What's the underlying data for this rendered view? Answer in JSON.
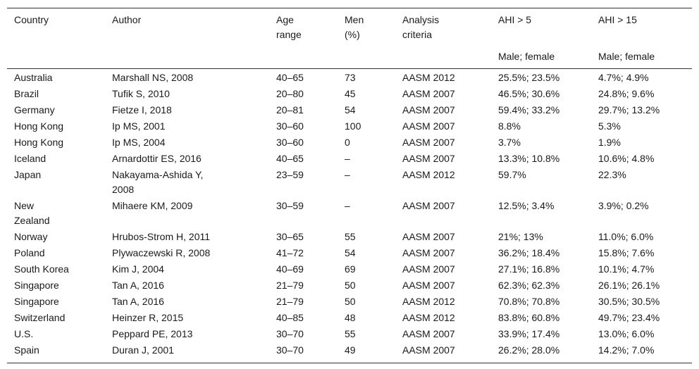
{
  "header": {
    "columns": [
      "Country",
      "Author",
      "Age range",
      "Men (%)",
      "Analysis criteria",
      "AHI > 5",
      "AHI > 15"
    ],
    "subheaders": [
      "Male; female",
      "Male; female"
    ]
  },
  "table": {
    "rows": [
      [
        "Australia",
        "Marshall NS, 2008",
        "40–65",
        "73",
        "AASM 2012",
        "25.5%; 23.5%",
        "4.7%; 4.9%"
      ],
      [
        "Brazil",
        "Tufik S, 2010",
        "20–80",
        "45",
        "AASM 2007",
        "46.5%; 30.6%",
        "24.8%; 9.6%"
      ],
      [
        "Germany",
        "Fietze I, 2018",
        "20–81",
        "54",
        "AASM 2007",
        "59.4%; 33.2%",
        "29.7%; 13.2%"
      ],
      [
        "Hong Kong",
        "Ip MS, 2001",
        "30–60",
        "100",
        "AASM 2007",
        "8.8%",
        "5.3%"
      ],
      [
        "Hong Kong",
        "Ip MS, 2004",
        "30–60",
        "0",
        "AASM 2007",
        "3.7%",
        "1.9%"
      ],
      [
        "Iceland",
        "Arnardottir ES, 2016",
        "40–65",
        "–",
        "AASM 2007",
        "13.3%; 10.8%",
        "10.6%; 4.8%"
      ],
      [
        "Japan",
        "Nakayama-Ashida Y, 2008",
        "23–59",
        "–",
        "AASM 2012",
        "59.7%",
        "22.3%"
      ],
      [
        "New Zealand",
        "Mihaere KM, 2009",
        "30–59",
        "–",
        "AASM 2007",
        "12.5%; 3.4%",
        "3.9%; 0.2%"
      ],
      [
        "Norway",
        "Hrubos-Strom H, 2011",
        "30–65",
        "55",
        "AASM 2007",
        "21%; 13%",
        "11.0%; 6.0%"
      ],
      [
        "Poland",
        "Plywaczewski R, 2008",
        "41–72",
        "54",
        "AASM 2007",
        "36.2%; 18.4%",
        "15.8%; 7.6%"
      ],
      [
        "South Korea",
        "Kim J, 2004",
        "40–69",
        "69",
        "AASM 2007",
        "27.1%; 16.8%",
        "10.1%; 4.7%"
      ],
      [
        "Singapore",
        "Tan A, 2016",
        "21–79",
        "50",
        "AASM 2007",
        "62.3%; 62.3%",
        "26.1%; 26.1%"
      ],
      [
        "Singapore",
        "Tan A, 2016",
        "21–79",
        "50",
        "AASM 2012",
        "70.8%; 70.8%",
        "30.5%; 30.5%"
      ],
      [
        "Switzerland",
        "Heinzer R, 2015",
        "40–85",
        "48",
        "AASM 2012",
        "83.8%; 60.8%",
        "49.7%; 23.4%"
      ],
      [
        "U.S.",
        "Peppard PE, 2013",
        "30–70",
        "55",
        "AASM 2007",
        "33.9%; 17.4%",
        "13.0%; 6.0%"
      ],
      [
        "Spain",
        "Duran J, 2001",
        "30–70",
        "49",
        "AASM 2007",
        "26.2%; 28.0%",
        "14.2%; 7.0%"
      ]
    ]
  }
}
